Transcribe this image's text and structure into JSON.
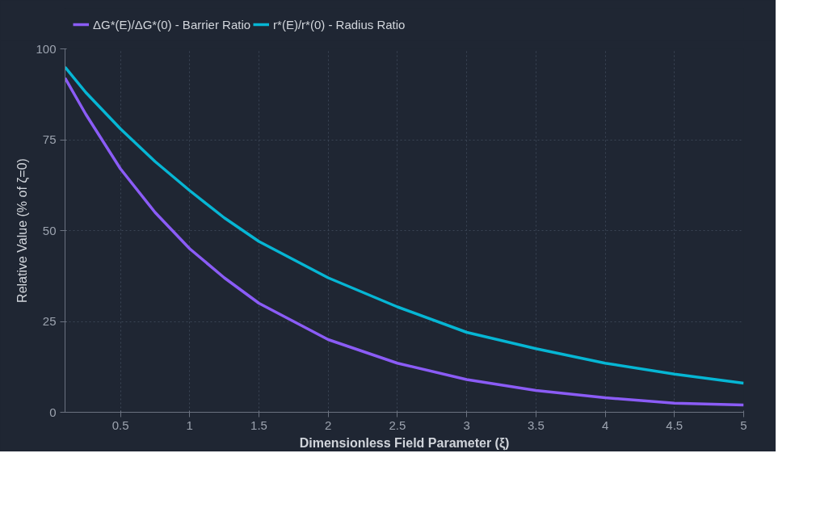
{
  "chart_data": {
    "type": "line",
    "xlabel": "Dimensionless Field Parameter (ξ)",
    "ylabel": "Relative Value (% of ζ=0)",
    "x": [
      0.1,
      0.25,
      0.5,
      0.75,
      1,
      1.25,
      1.5,
      1.75,
      2,
      2.5,
      3,
      3.5,
      4,
      4.5,
      5
    ],
    "series": [
      {
        "name": "ΔG*(E)/ΔG*(0) - Barrier Ratio",
        "color": "#8b5cf6",
        "values": [
          92,
          82,
          67,
          55,
          45,
          37,
          30,
          25,
          20,
          13.5,
          9,
          6,
          4,
          2.5,
          2
        ]
      },
      {
        "name": "r*(E)/r*(0) - Radius Ratio",
        "color": "#06b6d4",
        "values": [
          95,
          88,
          78,
          69,
          61,
          53.5,
          47,
          42,
          37,
          29,
          22,
          17.5,
          13.5,
          10.5,
          8
        ]
      }
    ],
    "xlim": [
      0.1,
      5
    ],
    "xticks": [
      0.5,
      1,
      1.5,
      2,
      2.5,
      3,
      3.5,
      4,
      4.5,
      5
    ],
    "ylim": [
      0,
      100
    ],
    "yticks": [
      0,
      25,
      50,
      75,
      100
    ],
    "grid": true,
    "legend": "top left",
    "line_style": "solid"
  }
}
